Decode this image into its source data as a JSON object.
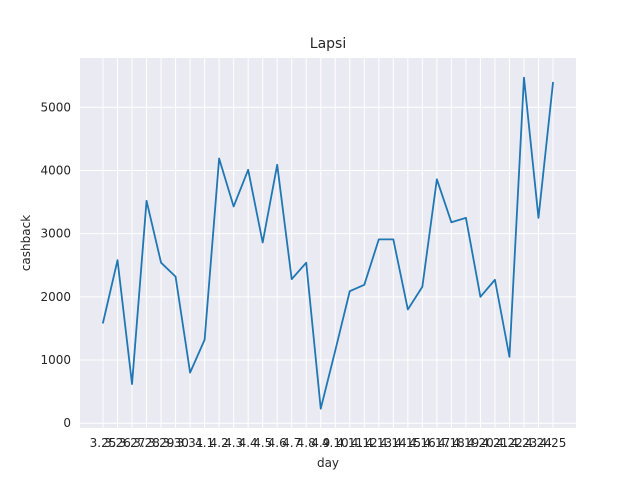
{
  "chart_data": {
    "type": "line",
    "title": "Lapsi",
    "xlabel": "day",
    "ylabel": "cashback",
    "categories": [
      "3.25",
      "3.26",
      "3.27",
      "3.28",
      "3.29",
      "3.30",
      "3.31",
      "4.1",
      "4.2",
      "4.3",
      "4.4",
      "4.5",
      "4.6",
      "4.7",
      "4.8",
      "4.9",
      "4.10",
      "4.11",
      "4.12",
      "4.13",
      "4.14",
      "4.15",
      "4.16",
      "4.17",
      "4.18",
      "4.19",
      "4.20",
      "4.21",
      "4.22",
      "4.23",
      "4.24",
      "4.25"
    ],
    "series": [
      {
        "values": [
          1590,
          2580,
          620,
          3520,
          2540,
          2320,
          800,
          1320,
          4190,
          3430,
          4010,
          2860,
          4090,
          2280,
          2540,
          230,
          1150,
          2090,
          2190,
          2910,
          2910,
          1800,
          2160,
          3860,
          3180,
          3250,
          2000,
          2270,
          1050,
          5470,
          3250,
          5390
        ],
        "color": "#1f77b4"
      }
    ],
    "ylim": [
      -76,
      5780
    ],
    "yticks": [
      "0",
      "1000",
      "2000",
      "3000",
      "4000",
      "5000"
    ],
    "grid": true,
    "background": "#eaeaf2"
  }
}
